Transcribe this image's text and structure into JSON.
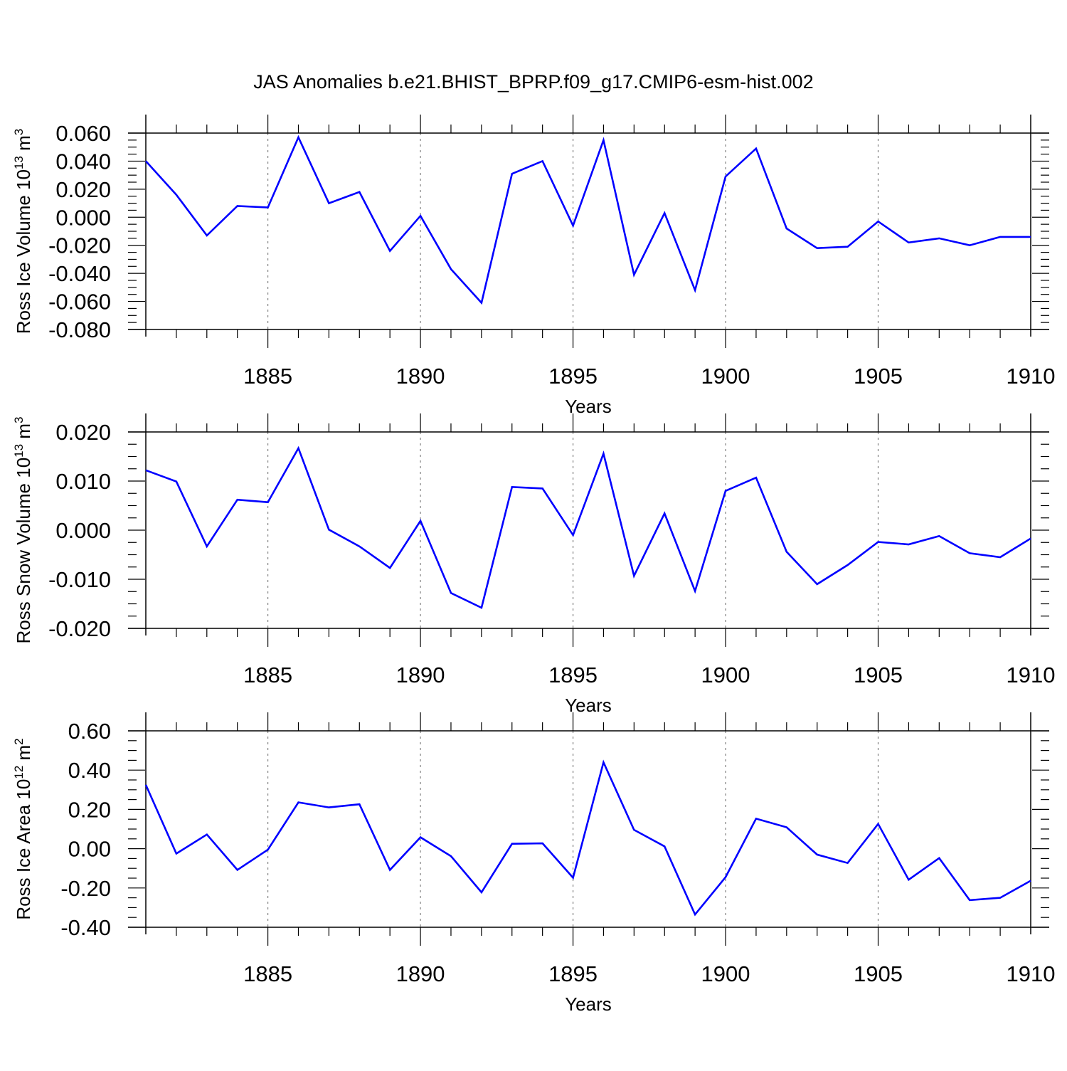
{
  "title": "JAS Anomalies b.e21.BHIST_BPRP.f09_g17.CMIP6-esm-hist.002",
  "colors": {
    "line": "#0000ff",
    "axes": "#000000",
    "gridline": "#808080"
  },
  "chart_data": [
    {
      "type": "line",
      "ylabel": "Ross Ice Volume 10",
      "ylabel_exponent": "13",
      "ylabel_unit": "m",
      "ylabel_unit_exponent": "3",
      "xlabel": "Years",
      "xlim": [
        1881,
        1910
      ],
      "ylim": [
        -0.08,
        0.06
      ],
      "xticks": [
        1885,
        1890,
        1895,
        1900,
        1905,
        1910
      ],
      "xtick_labels": [
        "1885",
        "1890",
        "1895",
        "1900",
        "1905",
        "1910"
      ],
      "yticks": [
        0.06,
        0.04,
        0.02,
        0.0,
        -0.02,
        -0.04,
        -0.06,
        -0.08
      ],
      "ytick_labels": [
        "0.060",
        "0.040",
        "0.020",
        "0.000",
        "-0.020",
        "-0.040",
        "-0.060",
        "-0.080"
      ],
      "x": [
        1881,
        1882,
        1883,
        1884,
        1885,
        1886,
        1887,
        1888,
        1889,
        1890,
        1891,
        1892,
        1893,
        1894,
        1895,
        1896,
        1897,
        1898,
        1899,
        1900,
        1901,
        1902,
        1903,
        1904,
        1905,
        1906,
        1907,
        1908,
        1909,
        1910
      ],
      "values": [
        0.04,
        0.016,
        -0.013,
        0.008,
        0.007,
        0.057,
        0.01,
        0.018,
        -0.024,
        0.001,
        -0.037,
        -0.061,
        0.031,
        0.04,
        -0.006,
        0.055,
        -0.041,
        0.003,
        -0.052,
        0.029,
        0.049,
        -0.008,
        -0.022,
        -0.021,
        -0.003,
        -0.018,
        -0.015,
        -0.02,
        -0.014,
        -0.014
      ]
    },
    {
      "type": "line",
      "ylabel": "Ross Snow Volume 10",
      "ylabel_exponent": "13",
      "ylabel_unit": "m",
      "ylabel_unit_exponent": "3",
      "xlabel": "Years",
      "xlim": [
        1881,
        1910
      ],
      "ylim": [
        -0.02,
        0.02
      ],
      "xticks": [
        1885,
        1890,
        1895,
        1900,
        1905,
        1910
      ],
      "xtick_labels": [
        "1885",
        "1890",
        "1895",
        "1900",
        "1905",
        "1910"
      ],
      "yticks": [
        0.02,
        0.01,
        0.0,
        -0.01,
        -0.02
      ],
      "ytick_labels": [
        "0.020",
        "0.010",
        "0.000",
        "-0.010",
        "-0.020"
      ],
      "x": [
        1881,
        1882,
        1883,
        1884,
        1885,
        1886,
        1887,
        1888,
        1889,
        1890,
        1891,
        1892,
        1893,
        1894,
        1895,
        1896,
        1897,
        1898,
        1899,
        1900,
        1901,
        1902,
        1903,
        1904,
        1905,
        1906,
        1907,
        1908,
        1909,
        1910
      ],
      "values": [
        0.0122,
        0.0099,
        -0.0033,
        0.0062,
        0.0057,
        0.0167,
        0.0001,
        -0.0033,
        -0.0077,
        0.0019,
        -0.0128,
        -0.0158,
        0.0088,
        0.0085,
        -0.001,
        0.0156,
        -0.0093,
        0.0034,
        -0.0124,
        0.008,
        0.0107,
        -0.0044,
        -0.011,
        -0.0071,
        -0.0024,
        -0.0029,
        -0.0012,
        -0.0047,
        -0.0055,
        -0.0017
      ]
    },
    {
      "type": "line",
      "ylabel": "Ross Ice Area 10",
      "ylabel_exponent": "12",
      "ylabel_unit": "m",
      "ylabel_unit_exponent": "2",
      "xlabel": "Years",
      "xlim": [
        1881,
        1910
      ],
      "ylim": [
        -0.4,
        0.6
      ],
      "xticks": [
        1885,
        1890,
        1895,
        1900,
        1905,
        1910
      ],
      "xtick_labels": [
        "1885",
        "1890",
        "1895",
        "1900",
        "1905",
        "1910"
      ],
      "yticks": [
        0.6,
        0.4,
        0.2,
        0.0,
        -0.2,
        -0.4
      ],
      "ytick_labels": [
        "0.60",
        "0.40",
        "0.20",
        "0.00",
        "-0.20",
        "-0.40"
      ],
      "x": [
        1881,
        1882,
        1883,
        1884,
        1885,
        1886,
        1887,
        1888,
        1889,
        1890,
        1891,
        1892,
        1893,
        1894,
        1895,
        1896,
        1897,
        1898,
        1899,
        1900,
        1901,
        1902,
        1903,
        1904,
        1905,
        1906,
        1907,
        1908,
        1909,
        1910
      ],
      "values": [
        0.325,
        -0.025,
        0.072,
        -0.108,
        -0.005,
        0.236,
        0.21,
        0.226,
        -0.108,
        0.058,
        -0.038,
        -0.222,
        0.025,
        0.027,
        -0.148,
        0.44,
        0.096,
        0.012,
        -0.335,
        -0.145,
        0.153,
        0.109,
        -0.03,
        -0.073,
        0.126,
        -0.158,
        -0.048,
        -0.262,
        -0.25,
        -0.163
      ]
    }
  ]
}
